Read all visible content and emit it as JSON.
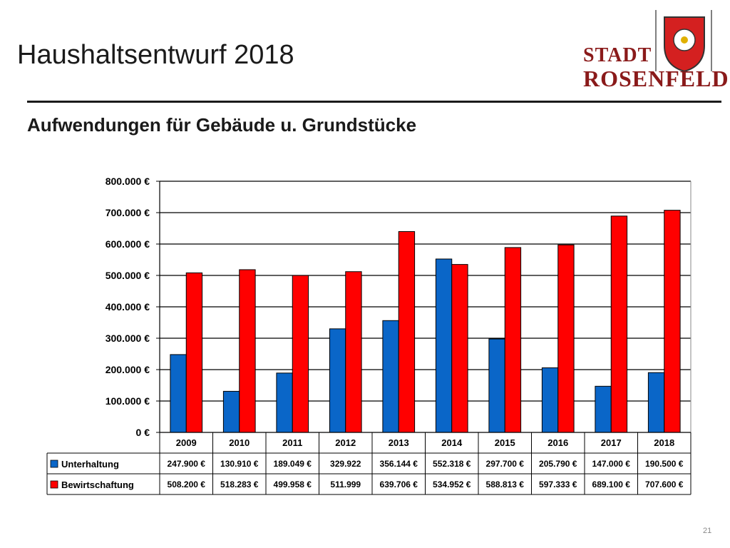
{
  "slide": {
    "title": "Haushaltsentwurf 2018",
    "subtitle": "Aufwendungen für Gebäude u. Grundstücke",
    "page_number": "21"
  },
  "logo": {
    "line1": "STADT",
    "line2": "ROSENFELD",
    "color": "#8a1a1a"
  },
  "chart_data": {
    "type": "bar",
    "categories": [
      "2009",
      "2010",
      "2011",
      "2012",
      "2013",
      "2014",
      "2015",
      "2016",
      "2017",
      "2018"
    ],
    "series": [
      {
        "name": "Unterhaltung",
        "color": "#0a66c8",
        "values": [
          247900,
          130910,
          189049,
          329922,
          356144,
          552318,
          297700,
          205790,
          147000,
          190500
        ],
        "labels": [
          "247.900 €",
          "130.910 €",
          "189.049 €",
          "329.922",
          "356.144 €",
          "552.318 €",
          "297.700 €",
          "205.790 €",
          "147.000 €",
          "190.500 €"
        ]
      },
      {
        "name": "Bewirtschaftung",
        "color": "#ff0000",
        "values": [
          508200,
          518283,
          499958,
          511999,
          639706,
          534952,
          588813,
          597333,
          689100,
          707600
        ],
        "labels": [
          "508.200 €",
          "518.283 €",
          "499.958 €",
          "511.999",
          "639.706 €",
          "534.952 €",
          "588.813 €",
          "597.333 €",
          "689.100 €",
          "707.600 €"
        ]
      }
    ],
    "ylim": [
      0,
      800000
    ],
    "yticks": [
      0,
      100000,
      200000,
      300000,
      400000,
      500000,
      600000,
      700000,
      800000
    ],
    "ytick_labels": [
      "0 €",
      "100.000 €",
      "200.000 €",
      "300.000 €",
      "400.000 €",
      "500.000 €",
      "600.000 €",
      "700.000 €",
      "800.000 €"
    ],
    "grid": true,
    "legend": "data table below chart"
  }
}
